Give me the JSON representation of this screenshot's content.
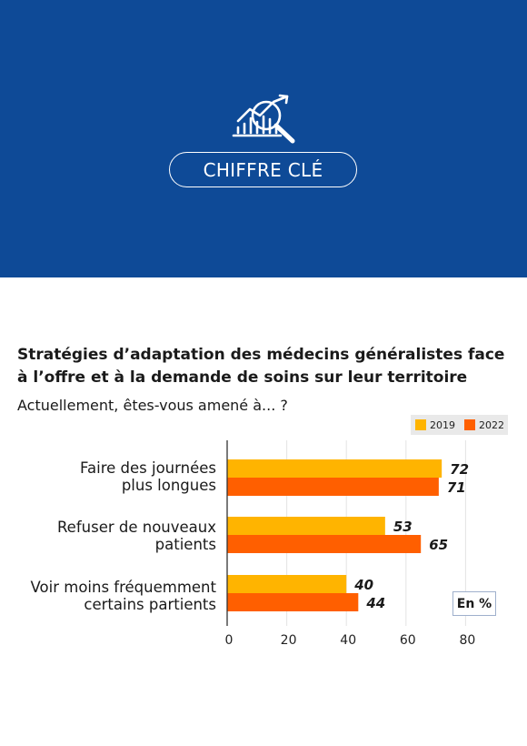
{
  "header": {
    "badge": "CHIFFRE CLÉ",
    "icon": "chart-magnifier-icon",
    "background": "#0e4a97"
  },
  "chart_data": {
    "type": "bar",
    "orientation": "horizontal",
    "title_line1": "Stratégies d’adaptation des médecins généralistes face",
    "title_line2": "à l’offre et à la demande de soins sur leur territoire",
    "subtitle": "Actuellement, êtes-vous amené à... ?",
    "categories": [
      {
        "line1": "Faire des journées",
        "line2": "plus longues"
      },
      {
        "line1": "Refuser de nouveaux",
        "line2": "patients"
      },
      {
        "line1": "Voir moins fréquemment",
        "line2": "certains partients"
      }
    ],
    "series": [
      {
        "name": "2019",
        "color": "#ffb400",
        "values": [
          72,
          53,
          40
        ]
      },
      {
        "name": "2022",
        "color": "#ff5f00",
        "values": [
          71,
          65,
          44
        ]
      }
    ],
    "xlim": [
      0,
      80
    ],
    "xticks": [
      "0",
      "20",
      "40",
      "60",
      "80"
    ],
    "unit": "En %",
    "grid": true,
    "legend_position": "top-right"
  }
}
